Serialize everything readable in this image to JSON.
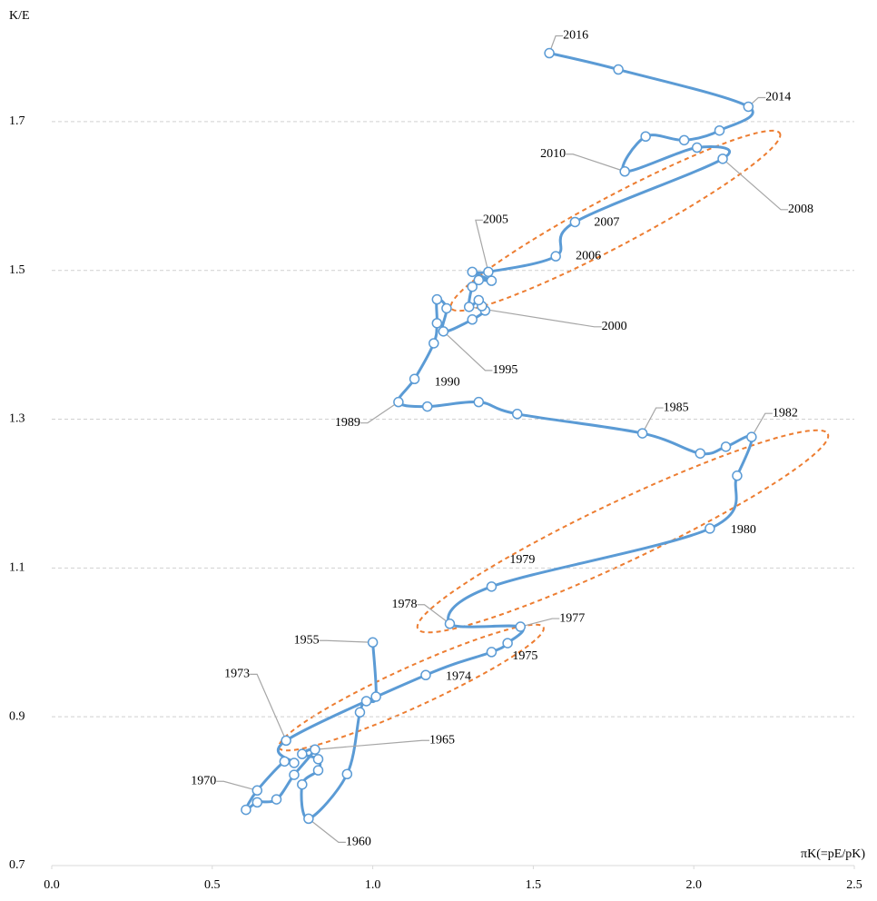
{
  "chart_data": {
    "type": "line",
    "x_label": "πK(=pE/pK)",
    "y_label": "K/E",
    "x": [
      1.0,
      1.01,
      0.98,
      0.96,
      0.92,
      0.8,
      0.78,
      0.83,
      0.83,
      0.78,
      0.82,
      0.755,
      0.7,
      0.64,
      0.605,
      0.64,
      0.725,
      0.755,
      0.73,
      1.165,
      1.37,
      1.42,
      1.46,
      1.24,
      1.37,
      2.05,
      2.135,
      2.18,
      2.1,
      2.02,
      1.84,
      1.45,
      1.33,
      1.17,
      1.08,
      1.13,
      1.19,
      1.2,
      1.2,
      1.23,
      1.22,
      1.31,
      1.35,
      1.34,
      1.33,
      1.3,
      1.31,
      1.33,
      1.37,
      1.31,
      1.36,
      1.57,
      1.63,
      2.09,
      2.01,
      1.785,
      1.85,
      1.97,
      2.08,
      2.17,
      1.765,
      1.55
    ],
    "values": [
      1.0,
      0.927,
      0.921,
      0.906,
      0.823,
      0.763,
      0.809,
      0.828,
      0.843,
      0.85,
      0.856,
      0.822,
      0.789,
      0.785,
      0.775,
      0.801,
      0.84,
      0.838,
      0.868,
      0.956,
      0.987,
      0.999,
      1.021,
      1.025,
      1.075,
      1.153,
      1.224,
      1.276,
      1.263,
      1.254,
      1.281,
      1.307,
      1.323,
      1.317,
      1.323,
      1.354,
      1.402,
      1.429,
      1.461,
      1.449,
      1.418,
      1.434,
      1.446,
      1.452,
      1.46,
      1.451,
      1.478,
      1.487,
      1.486,
      1.498,
      1.498,
      1.519,
      1.565,
      1.65,
      1.665,
      1.633,
      1.68,
      1.675,
      1.688,
      1.72,
      1.77,
      1.792
    ],
    "point_labels": [
      "1955",
      null,
      null,
      null,
      null,
      "1960",
      null,
      null,
      null,
      null,
      "1965",
      null,
      null,
      null,
      null,
      "1970",
      null,
      null,
      "1973",
      "1974",
      "1975",
      null,
      "1977",
      "1978",
      "1979",
      "1980",
      null,
      "1982",
      null,
      null,
      "1985",
      null,
      null,
      null,
      "1989",
      "1990",
      null,
      null,
      null,
      null,
      "1995",
      null,
      null,
      null,
      null,
      "2000",
      null,
      null,
      null,
      null,
      "2005",
      "2006",
      "2007",
      "2008",
      null,
      "2010",
      null,
      null,
      null,
      "2014",
      null,
      "2016"
    ],
    "color": "#5b9bd5",
    "xlim": [
      0,
      2.5
    ],
    "xticks": [
      {
        "value": 0,
        "label": "0.0"
      },
      0.5,
      {
        "value": 1,
        "label": "1.0"
      },
      1.5,
      {
        "value": 2,
        "label": "2.0"
      },
      2.5
    ],
    "ylim": [
      0.7,
      1.85
    ],
    "yticks": [
      0.7,
      0.9,
      1.1,
      1.3,
      1.5,
      1.7
    ],
    "grid": true
  }
}
